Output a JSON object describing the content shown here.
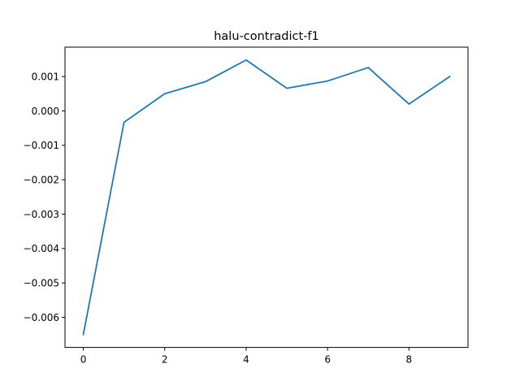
{
  "chart_data": {
    "type": "line",
    "title": "halu-contradict-f1",
    "xlabel": "",
    "ylabel": "",
    "x": [
      0,
      1,
      2,
      3,
      4,
      5,
      6,
      7,
      8,
      9
    ],
    "series": [
      {
        "color": "#1f77b4",
        "values": [
          -0.0065,
          -0.00033,
          0.0005,
          0.00085,
          0.00148,
          0.00066,
          0.00087,
          0.00126,
          0.0002,
          0.001
        ]
      }
    ],
    "xlim": [
      -0.45,
      9.45
    ],
    "ylim": [
      -0.006875,
      0.001855
    ],
    "xticks": [
      0,
      2,
      4,
      6,
      8
    ],
    "xtick_labels": [
      "0",
      "2",
      "4",
      "6",
      "8"
    ],
    "yticks": [
      0.001,
      0.0,
      -0.001,
      -0.002,
      -0.003,
      -0.004,
      -0.005,
      -0.006
    ],
    "ytick_labels": [
      "0.001",
      "0.000",
      "−0.001",
      "−0.002",
      "−0.003",
      "−0.004",
      "−0.005",
      "−0.006"
    ],
    "grid": false,
    "legend": "none"
  }
}
